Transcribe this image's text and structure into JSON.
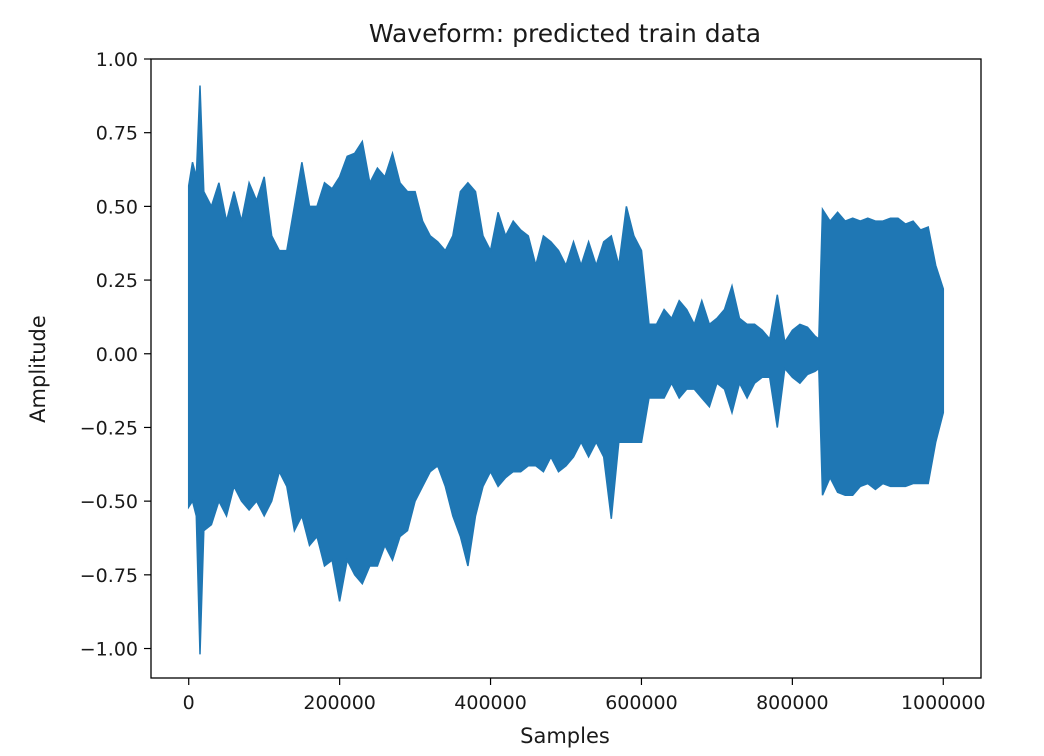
{
  "chart_data": {
    "type": "line",
    "title": "Waveform: predicted train data",
    "xlabel": "Samples",
    "ylabel": "Amplitude",
    "xlim": [
      -50000,
      1050000
    ],
    "ylim": [
      -1.1,
      1.0
    ],
    "xticks": [
      0,
      200000,
      400000,
      600000,
      800000,
      1000000
    ],
    "xtick_labels": [
      "0",
      "200000",
      "400000",
      "600000",
      "800000",
      "1000000"
    ],
    "yticks": [
      1.0,
      0.75,
      0.5,
      0.25,
      0.0,
      -0.25,
      -0.5,
      -0.75,
      -1.0
    ],
    "ytick_labels": [
      "1.00",
      "0.75",
      "0.50",
      "0.25",
      "0.00",
      "−0.25",
      "−0.50",
      "−0.75",
      "−1.00"
    ],
    "grid": false,
    "color": "#1f77b4",
    "series": [
      {
        "x": [
          0,
          5000,
          10000,
          15000,
          20000,
          30000,
          40000,
          50000,
          60000,
          70000,
          80000,
          90000,
          100000,
          110000,
          120000,
          130000,
          140000,
          150000,
          160000,
          170000,
          180000,
          190000,
          200000,
          210000,
          220000,
          230000,
          240000,
          250000,
          260000,
          270000,
          280000,
          290000,
          300000,
          310000,
          320000,
          330000,
          340000,
          350000,
          360000,
          370000,
          380000,
          390000,
          400000,
          410000,
          420000,
          430000,
          440000,
          450000,
          460000,
          470000,
          480000,
          490000,
          500000,
          510000,
          520000,
          530000,
          540000,
          550000,
          560000,
          570000,
          580000,
          590000,
          600000,
          610000,
          620000,
          630000,
          640000,
          650000,
          660000,
          670000,
          680000,
          690000,
          700000,
          710000,
          720000,
          730000,
          740000,
          750000,
          760000,
          770000,
          780000,
          790000,
          800000,
          810000,
          820000,
          830000,
          835000,
          840000,
          850000,
          860000,
          870000,
          880000,
          890000,
          900000,
          910000,
          920000,
          930000,
          940000,
          950000,
          960000,
          970000,
          980000,
          990000,
          1000000
        ],
        "max": [
          0.57,
          0.65,
          0.6,
          0.91,
          0.55,
          0.5,
          0.58,
          0.45,
          0.55,
          0.45,
          0.58,
          0.52,
          0.6,
          0.4,
          0.35,
          0.35,
          0.5,
          0.65,
          0.5,
          0.5,
          0.58,
          0.56,
          0.6,
          0.67,
          0.68,
          0.72,
          0.58,
          0.63,
          0.6,
          0.68,
          0.58,
          0.55,
          0.55,
          0.45,
          0.4,
          0.38,
          0.35,
          0.4,
          0.55,
          0.58,
          0.55,
          0.4,
          0.35,
          0.48,
          0.4,
          0.45,
          0.42,
          0.4,
          0.3,
          0.4,
          0.38,
          0.35,
          0.3,
          0.38,
          0.3,
          0.38,
          0.3,
          0.38,
          0.4,
          0.3,
          0.5,
          0.4,
          0.35,
          0.1,
          0.1,
          0.15,
          0.12,
          0.18,
          0.15,
          0.1,
          0.18,
          0.1,
          0.12,
          0.15,
          0.23,
          0.12,
          0.1,
          0.1,
          0.08,
          0.05,
          0.2,
          0.04,
          0.08,
          0.1,
          0.09,
          0.06,
          0.05,
          0.49,
          0.45,
          0.48,
          0.45,
          0.46,
          0.45,
          0.46,
          0.45,
          0.45,
          0.46,
          0.46,
          0.44,
          0.45,
          0.42,
          0.43,
          0.3,
          0.22
        ],
        "min": [
          -0.52,
          -0.5,
          -0.55,
          -1.02,
          -0.6,
          -0.58,
          -0.5,
          -0.55,
          -0.45,
          -0.5,
          -0.53,
          -0.5,
          -0.55,
          -0.5,
          -0.4,
          -0.45,
          -0.6,
          -0.55,
          -0.65,
          -0.62,
          -0.72,
          -0.7,
          -0.84,
          -0.7,
          -0.75,
          -0.78,
          -0.72,
          -0.72,
          -0.65,
          -0.7,
          -0.62,
          -0.6,
          -0.5,
          -0.45,
          -0.4,
          -0.38,
          -0.45,
          -0.55,
          -0.62,
          -0.72,
          -0.55,
          -0.45,
          -0.4,
          -0.45,
          -0.42,
          -0.4,
          -0.4,
          -0.38,
          -0.38,
          -0.4,
          -0.35,
          -0.4,
          -0.38,
          -0.35,
          -0.3,
          -0.35,
          -0.3,
          -0.35,
          -0.56,
          -0.3,
          -0.3,
          -0.3,
          -0.3,
          -0.15,
          -0.15,
          -0.15,
          -0.1,
          -0.15,
          -0.12,
          -0.12,
          -0.15,
          -0.18,
          -0.1,
          -0.12,
          -0.2,
          -0.1,
          -0.15,
          -0.1,
          -0.08,
          -0.08,
          -0.25,
          -0.05,
          -0.08,
          -0.1,
          -0.07,
          -0.06,
          -0.05,
          -0.48,
          -0.42,
          -0.47,
          -0.48,
          -0.48,
          -0.45,
          -0.44,
          -0.46,
          -0.44,
          -0.45,
          -0.45,
          -0.45,
          -0.44,
          -0.44,
          -0.44,
          -0.3,
          -0.2
        ]
      }
    ]
  }
}
